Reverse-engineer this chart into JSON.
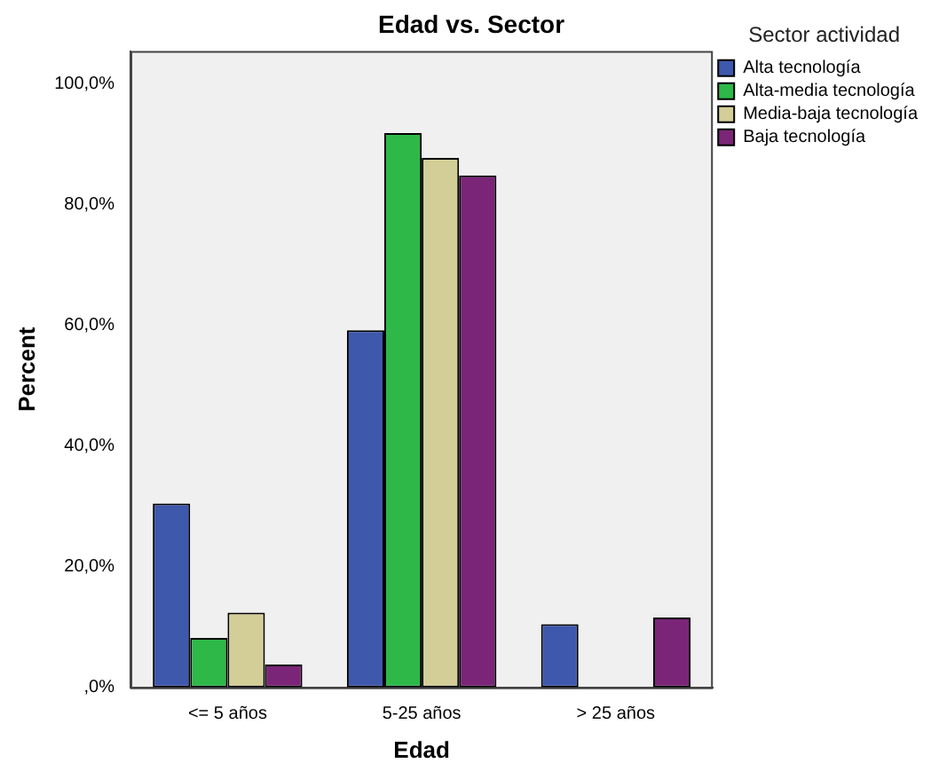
{
  "chart_data": {
    "type": "bar",
    "title": "Edad vs. Sector",
    "xlabel": "Edad",
    "ylabel": "Percent",
    "legend_title": "Sector actividad",
    "categories": [
      "<= 5 años",
      "5-25 años",
      "> 25 años"
    ],
    "series": [
      {
        "name": "Alta tecnología",
        "color": "#3e58ac",
        "values": [
          30.5,
          59.2,
          10.5
        ]
      },
      {
        "name": "Alta-media tecnología",
        "color": "#2eb848",
        "values": [
          8.2,
          91.9,
          0
        ]
      },
      {
        "name": "Media-baja tecnología",
        "color": "#d3ce97",
        "values": [
          12.4,
          87.8,
          0
        ]
      },
      {
        "name": "Baja tecnología",
        "color": "#7b2578",
        "values": [
          3.8,
          84.9,
          11.6
        ]
      }
    ],
    "ylim": [
      0,
      105.5
    ],
    "yticks": [
      {
        "value": 0,
        "label": ",0%"
      },
      {
        "value": 20,
        "label": "20,0%"
      },
      {
        "value": 40,
        "label": "40,0%"
      },
      {
        "value": 60,
        "label": "60,0%"
      },
      {
        "value": 80,
        "label": "80,0%"
      },
      {
        "value": 100,
        "label": "100,0%"
      }
    ],
    "grid": false,
    "legend": "top right"
  }
}
